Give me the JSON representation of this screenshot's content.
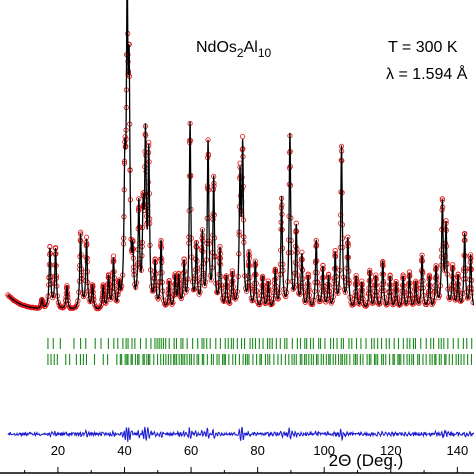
{
  "chart_data": {
    "type": "line",
    "title": "",
    "xlabel": "2Θ (Deg.)",
    "ylabel": "",
    "xlim": [
      5,
      145
    ],
    "x_ticks": [
      20,
      40,
      60,
      80,
      100,
      120,
      140
    ],
    "grid": false,
    "legend": "none",
    "annotations": [
      {
        "id": "compound",
        "parts": [
          "NdOs",
          "2",
          "Al",
          "10"
        ]
      },
      {
        "id": "temperature",
        "text": "T = 300 K"
      },
      {
        "id": "wavelength",
        "text": "λ = 1.594 Å"
      }
    ],
    "background_level": 0.04,
    "peaks": [
      {
        "x": 15.2,
        "h": 0.03
      },
      {
        "x": 17.6,
        "h": 0.2
      },
      {
        "x": 19.3,
        "h": 0.2
      },
      {
        "x": 22.7,
        "h": 0.08
      },
      {
        "x": 26.8,
        "h": 0.25
      },
      {
        "x": 28.6,
        "h": 0.23
      },
      {
        "x": 30.4,
        "h": 0.08
      },
      {
        "x": 33.6,
        "h": 0.08
      },
      {
        "x": 35.2,
        "h": 0.11
      },
      {
        "x": 36.7,
        "h": 0.17
      },
      {
        "x": 38.4,
        "h": 0.07
      },
      {
        "x": 40.1,
        "h": 0.4
      },
      {
        "x": 40.8,
        "h": 0.95
      },
      {
        "x": 41.4,
        "h": 0.68
      },
      {
        "x": 42.5,
        "h": 0.15
      },
      {
        "x": 44.3,
        "h": 0.34
      },
      {
        "x": 45.6,
        "h": 0.28
      },
      {
        "x": 46.3,
        "h": 0.54
      },
      {
        "x": 47.3,
        "h": 0.5
      },
      {
        "x": 49.2,
        "h": 0.15
      },
      {
        "x": 51.0,
        "h": 0.23
      },
      {
        "x": 53.4,
        "h": 0.09
      },
      {
        "x": 55.2,
        "h": 0.11
      },
      {
        "x": 56.3,
        "h": 0.11
      },
      {
        "x": 57.9,
        "h": 0.15
      },
      {
        "x": 59.7,
        "h": 0.62
      },
      {
        "x": 61.6,
        "h": 0.21
      },
      {
        "x": 63.4,
        "h": 0.25
      },
      {
        "x": 65.1,
        "h": 0.55
      },
      {
        "x": 66.8,
        "h": 0.43
      },
      {
        "x": 68.7,
        "h": 0.2
      },
      {
        "x": 70.6,
        "h": 0.11
      },
      {
        "x": 72.4,
        "h": 0.12
      },
      {
        "x": 74.7,
        "h": 0.42
      },
      {
        "x": 75.5,
        "h": 0.52
      },
      {
        "x": 77.4,
        "h": 0.18
      },
      {
        "x": 79.3,
        "h": 0.16
      },
      {
        "x": 81.5,
        "h": 0.11
      },
      {
        "x": 83.2,
        "h": 0.09
      },
      {
        "x": 85.3,
        "h": 0.13
      },
      {
        "x": 87.2,
        "h": 0.37
      },
      {
        "x": 89.7,
        "h": 0.58
      },
      {
        "x": 91.6,
        "h": 0.27
      },
      {
        "x": 93.3,
        "h": 0.18
      },
      {
        "x": 95.2,
        "h": 0.11
      },
      {
        "x": 97.6,
        "h": 0.23
      },
      {
        "x": 99.6,
        "h": 0.14
      },
      {
        "x": 101.3,
        "h": 0.11
      },
      {
        "x": 103.3,
        "h": 0.18
      },
      {
        "x": 105.2,
        "h": 0.54
      },
      {
        "x": 107.1,
        "h": 0.23
      },
      {
        "x": 109.6,
        "h": 0.11
      },
      {
        "x": 111.3,
        "h": 0.09
      },
      {
        "x": 113.7,
        "h": 0.13
      },
      {
        "x": 115.5,
        "h": 0.11
      },
      {
        "x": 117.6,
        "h": 0.16
      },
      {
        "x": 119.8,
        "h": 0.11
      },
      {
        "x": 121.6,
        "h": 0.09
      },
      {
        "x": 123.7,
        "h": 0.11
      },
      {
        "x": 125.6,
        "h": 0.12
      },
      {
        "x": 127.5,
        "h": 0.09
      },
      {
        "x": 129.4,
        "h": 0.18
      },
      {
        "x": 131.6,
        "h": 0.11
      },
      {
        "x": 133.6,
        "h": 0.14
      },
      {
        "x": 135.5,
        "h": 0.35
      },
      {
        "x": 136.6,
        "h": 0.27
      },
      {
        "x": 138.6,
        "h": 0.14
      },
      {
        "x": 140.2,
        "h": 0.11
      },
      {
        "x": 142.2,
        "h": 0.25
      },
      {
        "x": 144.0,
        "h": 0.18
      }
    ],
    "series": [
      {
        "id": "observed",
        "color": "#e01010",
        "marker": "open-circle",
        "style": "markers"
      },
      {
        "id": "calculated",
        "color": "#000000",
        "style": "line"
      },
      {
        "id": "difference",
        "color": "#1a1ad0",
        "style": "line"
      },
      {
        "id": "bragg_phase_1",
        "color": "#1b8a1b",
        "style": "ticks",
        "row": 1
      },
      {
        "id": "bragg_phase_2",
        "color": "#1b8a1b",
        "style": "ticks",
        "row": 2
      }
    ]
  }
}
